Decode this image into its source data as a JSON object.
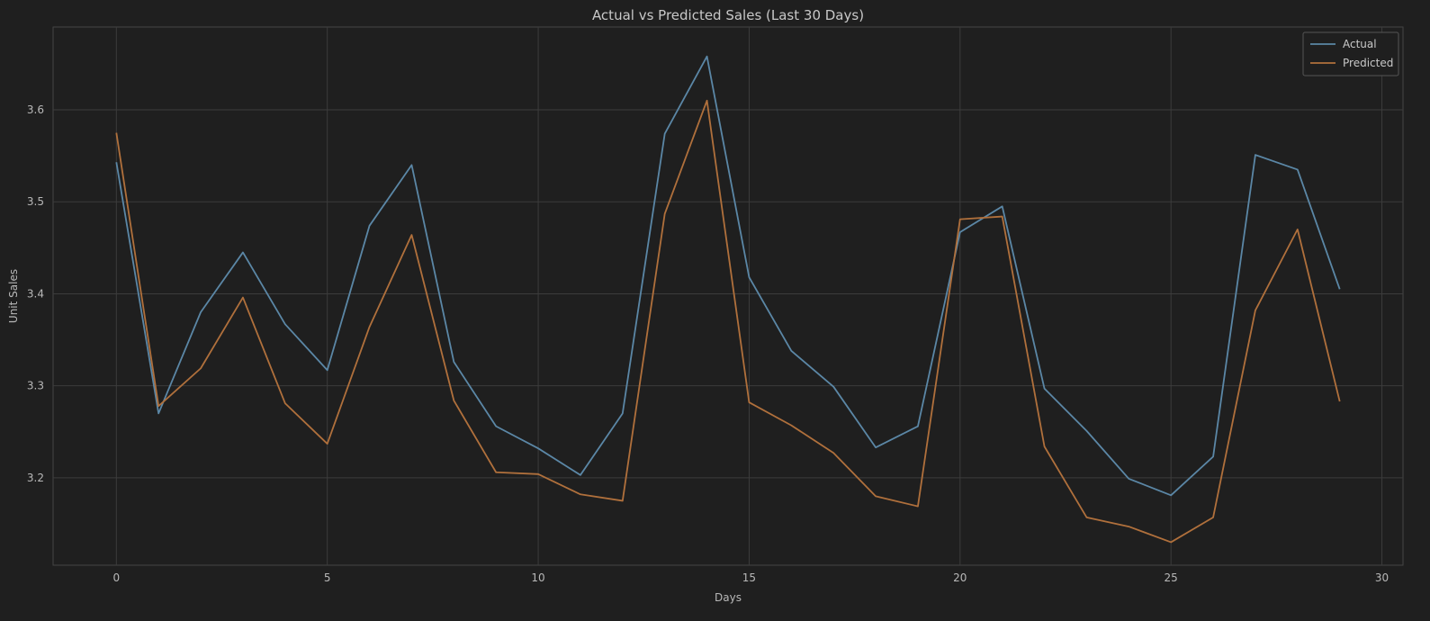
{
  "chart_data": {
    "type": "line",
    "title": "Actual vs Predicted Sales (Last 30 Days)",
    "xlabel": "Days",
    "ylabel": "Unit Sales",
    "xlim": [
      -1.5,
      30.5
    ],
    "ylim": [
      3.105,
      3.69
    ],
    "xticks": [
      0,
      5,
      10,
      15,
      20,
      25,
      30
    ],
    "yticks": [
      3.2,
      3.3,
      3.4,
      3.5,
      3.6
    ],
    "grid": true,
    "legend": "top-right",
    "x": [
      0,
      1,
      2,
      3,
      4,
      5,
      6,
      7,
      8,
      9,
      10,
      11,
      12,
      13,
      14,
      15,
      16,
      17,
      18,
      19,
      20,
      21,
      22,
      23,
      24,
      25,
      26,
      27,
      28,
      29
    ],
    "series": [
      {
        "name": "Actual",
        "color": "#5b87a6",
        "values": [
          3.543,
          3.27,
          3.38,
          3.445,
          3.367,
          3.317,
          3.474,
          3.54,
          3.326,
          3.256,
          3.232,
          3.203,
          3.27,
          3.574,
          3.658,
          3.418,
          3.338,
          3.299,
          3.233,
          3.256,
          3.467,
          3.495,
          3.297,
          3.251,
          3.199,
          3.181,
          3.223,
          3.551,
          3.535,
          3.405
        ]
      },
      {
        "name": "Predicted",
        "color": "#b0703c",
        "values": [
          3.575,
          3.278,
          3.319,
          3.396,
          3.281,
          3.237,
          3.364,
          3.464,
          3.284,
          3.206,
          3.204,
          3.182,
          3.175,
          3.487,
          3.61,
          3.282,
          3.257,
          3.227,
          3.18,
          3.169,
          3.481,
          3.484,
          3.234,
          3.157,
          3.147,
          3.13,
          3.157,
          3.382,
          3.47,
          3.283
        ]
      }
    ]
  }
}
